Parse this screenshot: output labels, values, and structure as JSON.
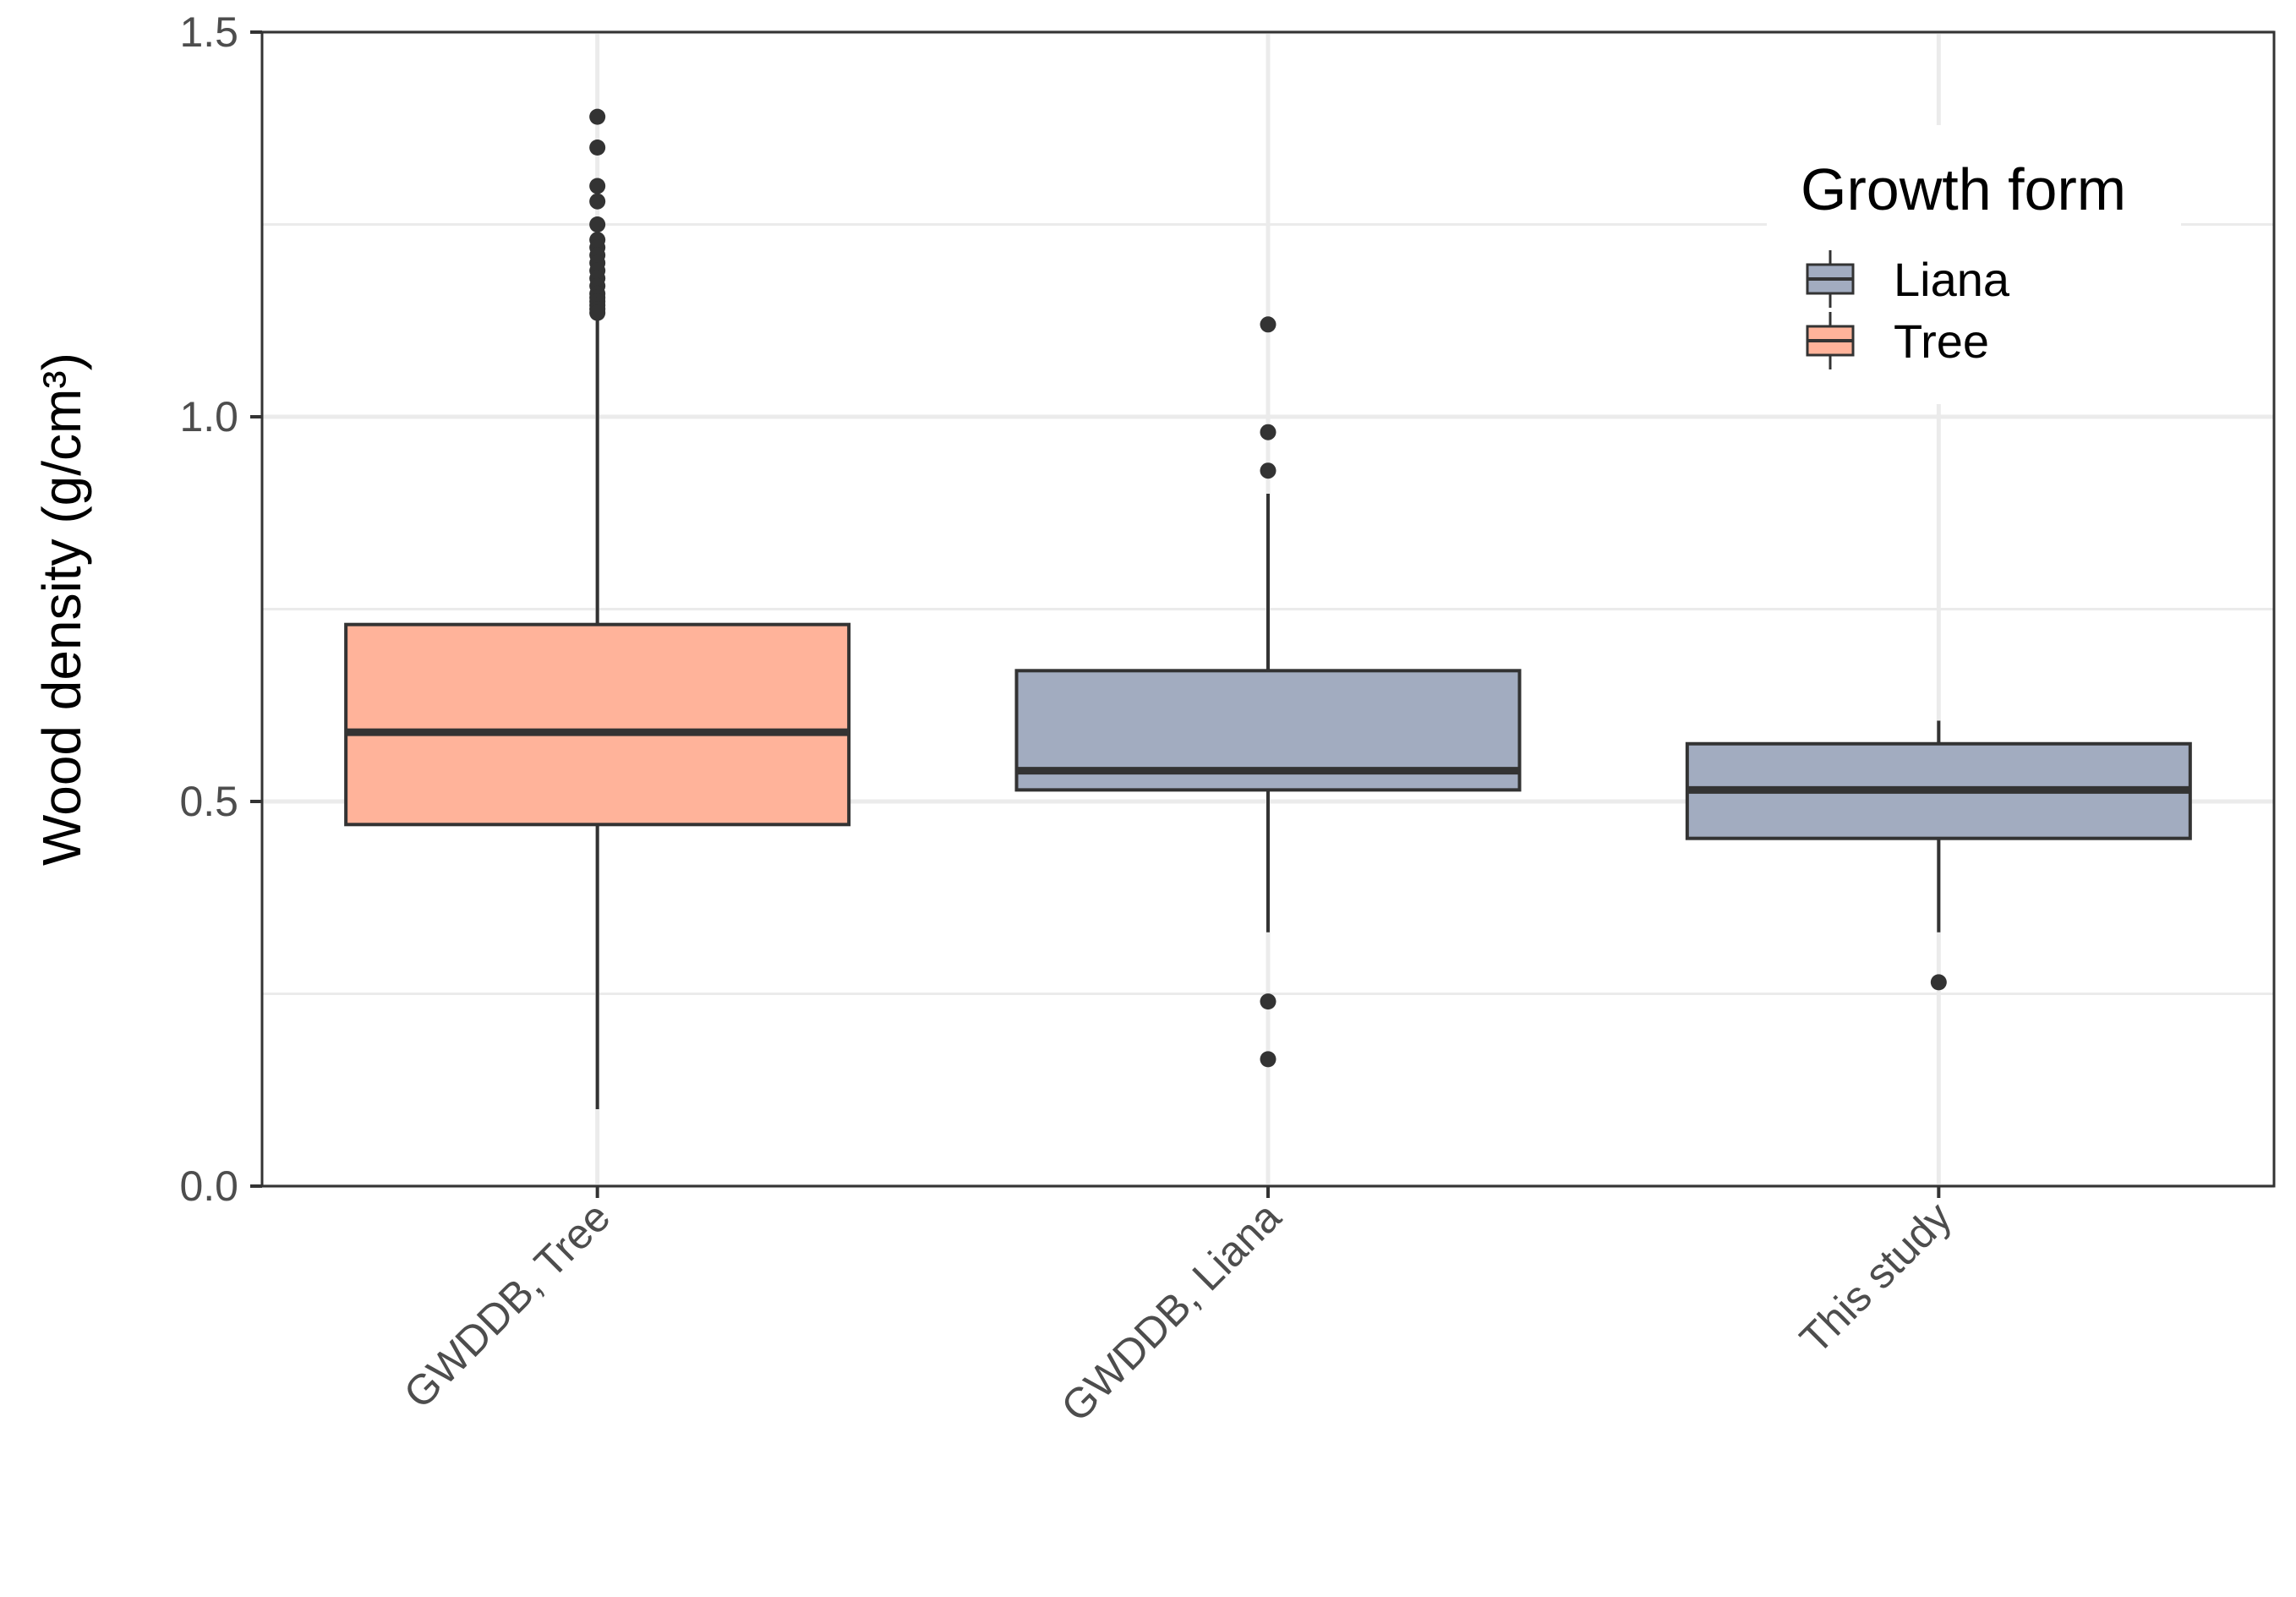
{
  "chart_data": {
    "type": "boxplot",
    "title": "",
    "xlabel": "",
    "ylabel": "Wood density (g/cm³)",
    "ylim": [
      0,
      1.5
    ],
    "yticks": [
      "0.0",
      "0.5",
      "1.0",
      "1.5"
    ],
    "ytick_values": [
      0,
      0.5,
      1.0,
      1.5
    ],
    "grid": true,
    "legend": {
      "title": "Growth form",
      "placement": "top-right",
      "entries": [
        {
          "label": "Liana",
          "color": "#a2acc0"
        },
        {
          "label": "Tree",
          "color": "#ffb39a"
        }
      ]
    },
    "categories": [
      "GWDDB, Tree",
      "GWDDB, Liana",
      "This study"
    ],
    "boxes": [
      {
        "category": "GWDDB, Tree",
        "group": "Tree",
        "whisker_low": 0.1,
        "q1": 0.47,
        "median": 0.59,
        "q3": 0.73,
        "whisker_high": 1.13,
        "outliers": [
          1.39,
          1.35,
          1.3,
          1.28,
          1.25,
          1.23,
          1.22,
          1.21,
          1.2,
          1.19,
          1.18,
          1.17,
          1.16,
          1.155,
          1.15,
          1.145,
          1.14,
          1.135
        ]
      },
      {
        "category": "GWDDB, Liana",
        "group": "Liana",
        "whisker_low": 0.33,
        "q1": 0.515,
        "median": 0.54,
        "q3": 0.67,
        "whisker_high": 0.9,
        "outliers": [
          1.12,
          0.98,
          0.93,
          0.24,
          0.165
        ]
      },
      {
        "category": "This study",
        "group": "Liana",
        "whisker_low": 0.33,
        "q1": 0.452,
        "median": 0.515,
        "q3": 0.575,
        "whisker_high": 0.605,
        "outliers": [
          0.265
        ]
      }
    ],
    "colors": {
      "Liana": "#a2acc0",
      "Tree": "#ffb39a",
      "line": "#333333",
      "grid": "#ebebeb"
    }
  }
}
